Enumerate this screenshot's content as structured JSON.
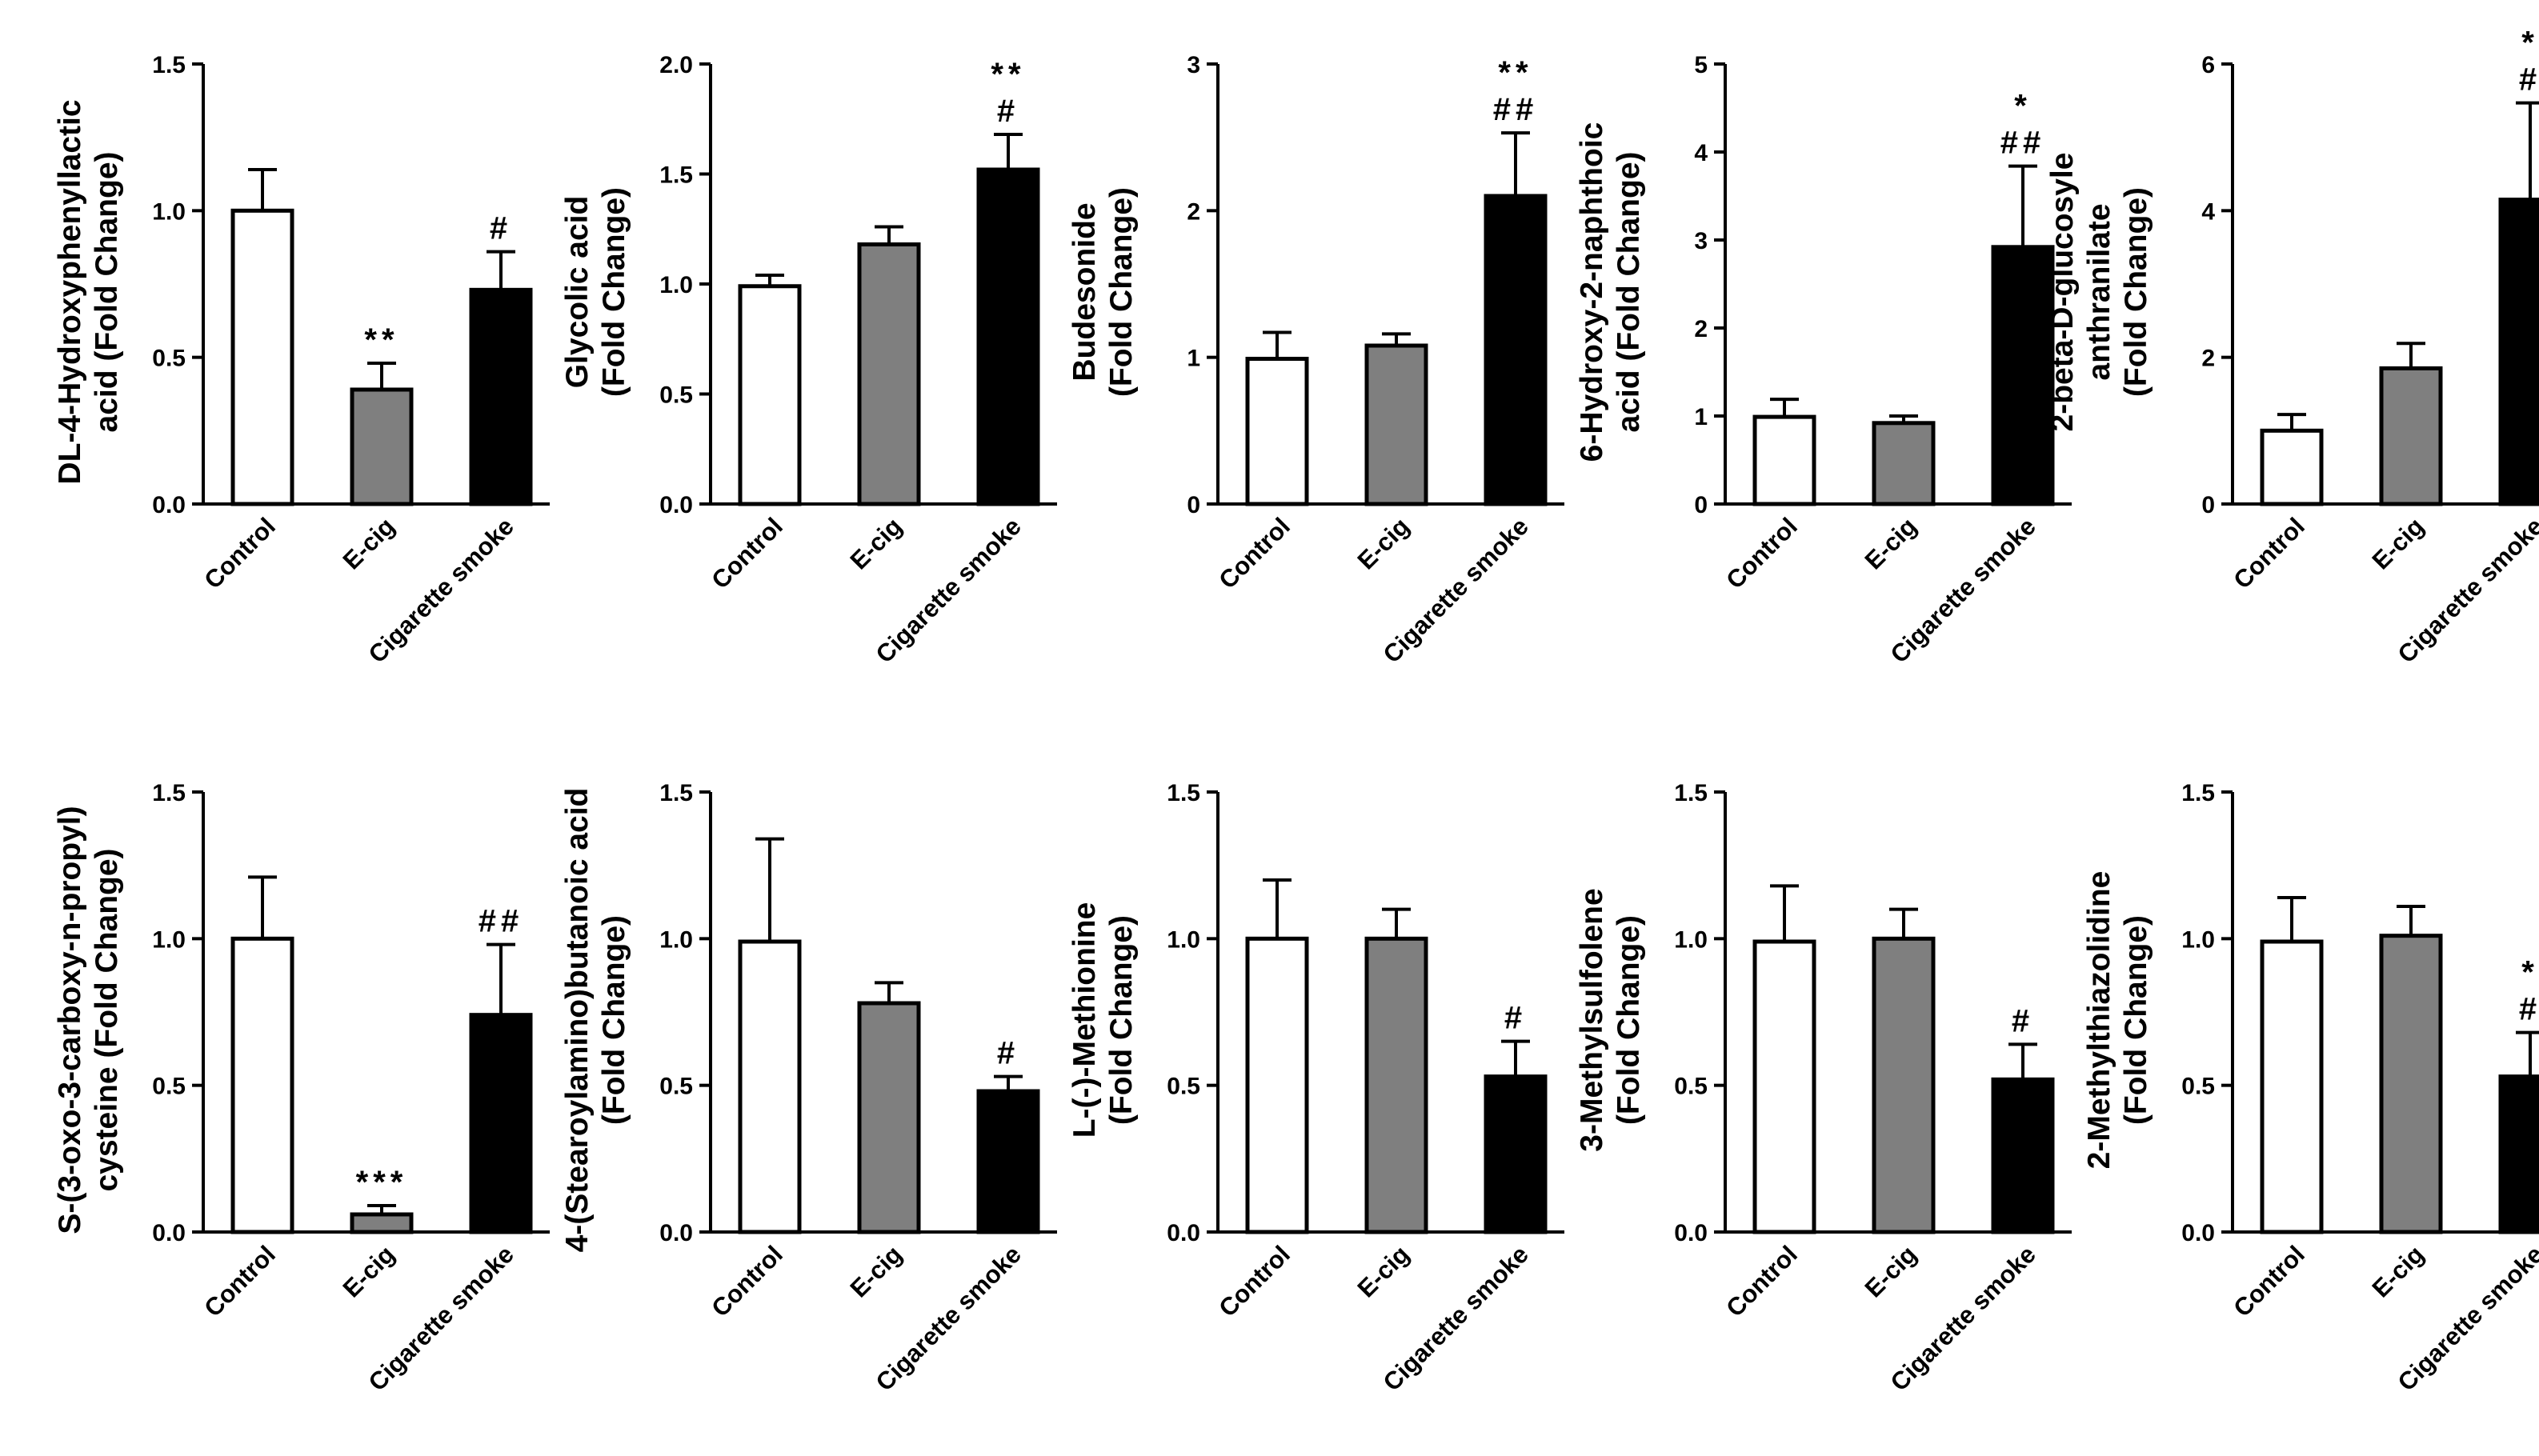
{
  "colors": {
    "control": "#ffffff",
    "ecig": "#7f7f7f",
    "smoke": "#000000",
    "axis": "#000000",
    "error_bar": "#000000"
  },
  "chart_data": [
    {
      "type": "bar",
      "ylabel": [
        "DL-4-Hydroxyphenyllactic",
        "acid (Fold Change)"
      ],
      "ylim": [
        0,
        1.5
      ],
      "yticks": [
        "0.0",
        "0.5",
        "1.0",
        "1.5"
      ],
      "categories": [
        "Control",
        "E-cig",
        "Cigarette smoke"
      ],
      "values": [
        1.0,
        0.39,
        0.73
      ],
      "errors": [
        0.14,
        0.09,
        0.13
      ],
      "significance": [
        [],
        [
          "**"
        ],
        [
          "#"
        ]
      ]
    },
    {
      "type": "bar",
      "ylabel": [
        "Glycolic acid",
        "(Fold Change)"
      ],
      "ylim": [
        0,
        2.0
      ],
      "yticks": [
        "0.0",
        "0.5",
        "1.0",
        "1.5",
        "2.0"
      ],
      "categories": [
        "Control",
        "E-cig",
        "Cigarette smoke"
      ],
      "values": [
        0.99,
        1.18,
        1.52
      ],
      "errors": [
        0.05,
        0.08,
        0.16
      ],
      "significance": [
        [],
        [],
        [
          "**",
          "#"
        ]
      ]
    },
    {
      "type": "bar",
      "ylabel": [
        "Budesonide",
        "(Fold Change)"
      ],
      "ylim": [
        0,
        3
      ],
      "yticks": [
        "0",
        "1",
        "2",
        "3"
      ],
      "categories": [
        "Control",
        "E-cig",
        "Cigarette smoke"
      ],
      "values": [
        0.99,
        1.08,
        2.1
      ],
      "errors": [
        0.18,
        0.08,
        0.43
      ],
      "significance": [
        [],
        [],
        [
          "**",
          "##"
        ]
      ]
    },
    {
      "type": "bar",
      "ylabel": [
        "6-Hydroxy-2-naphthoic",
        "acid (Fold Change)"
      ],
      "ylim": [
        0,
        5
      ],
      "yticks": [
        "0",
        "1",
        "2",
        "3",
        "4",
        "5"
      ],
      "categories": [
        "Control",
        "E-cig",
        "Cigarette smoke"
      ],
      "values": [
        0.99,
        0.92,
        2.92
      ],
      "errors": [
        0.2,
        0.08,
        0.92
      ],
      "significance": [
        [],
        [],
        [
          "*",
          "##"
        ]
      ]
    },
    {
      "type": "bar",
      "ylabel": [
        "2-beta-D-glucosyle",
        "anthranilate",
        "(Fold Change)"
      ],
      "ylim": [
        0,
        6
      ],
      "yticks": [
        "0",
        "2",
        "4",
        "6"
      ],
      "categories": [
        "Control",
        "E-cig",
        "Cigarette smoke"
      ],
      "values": [
        1.0,
        1.85,
        4.15
      ],
      "errors": [
        0.22,
        0.34,
        1.32
      ],
      "significance": [
        [],
        [],
        [
          "*",
          "#"
        ]
      ]
    },
    {
      "type": "bar",
      "ylabel": [
        "S-(3-oxo-3-carboxy-n-propyl)",
        "cysteine (Fold Change)"
      ],
      "ylim": [
        0,
        1.5
      ],
      "yticks": [
        "0.0",
        "0.5",
        "1.0",
        "1.5"
      ],
      "categories": [
        "Control",
        "E-cig",
        "Cigarette smoke"
      ],
      "values": [
        1.0,
        0.06,
        0.74
      ],
      "errors": [
        0.21,
        0.03,
        0.24
      ],
      "significance": [
        [],
        [
          "***"
        ],
        [
          "##"
        ]
      ]
    },
    {
      "type": "bar",
      "ylabel": [
        "4-(Stearoylamino)butanoic acid",
        "(Fold Change)"
      ],
      "ylim": [
        0,
        1.5
      ],
      "yticks": [
        "0.0",
        "0.5",
        "1.0",
        "1.5"
      ],
      "categories": [
        "Control",
        "E-cig",
        "Cigarette smoke"
      ],
      "values": [
        0.99,
        0.78,
        0.48
      ],
      "errors": [
        0.35,
        0.07,
        0.05
      ],
      "significance": [
        [],
        [],
        [
          "#"
        ]
      ]
    },
    {
      "type": "bar",
      "ylabel": [
        "L-(-)-Methionine",
        "(Fold Change)"
      ],
      "ylim": [
        0,
        1.5
      ],
      "yticks": [
        "0.0",
        "0.5",
        "1.0",
        "1.5"
      ],
      "categories": [
        "Control",
        "E-cig",
        "Cigarette smoke"
      ],
      "values": [
        1.0,
        1.0,
        0.53
      ],
      "errors": [
        0.2,
        0.1,
        0.12
      ],
      "significance": [
        [],
        [],
        [
          "#"
        ]
      ]
    },
    {
      "type": "bar",
      "ylabel": [
        "3-Methylsulfolene",
        "(Fold Change)"
      ],
      "ylim": [
        0,
        1.5
      ],
      "yticks": [
        "0.0",
        "0.5",
        "1.0",
        "1.5"
      ],
      "categories": [
        "Control",
        "E-cig",
        "Cigarette smoke"
      ],
      "values": [
        0.99,
        1.0,
        0.52
      ],
      "errors": [
        0.19,
        0.1,
        0.12
      ],
      "significance": [
        [],
        [],
        [
          "#"
        ]
      ]
    },
    {
      "type": "bar",
      "ylabel": [
        "2-Methylthiazolidine",
        "(Fold Change)"
      ],
      "ylim": [
        0,
        1.5
      ],
      "yticks": [
        "0.0",
        "0.5",
        "1.0",
        "1.5"
      ],
      "categories": [
        "Control",
        "E-cig",
        "Cigarette smoke"
      ],
      "values": [
        0.99,
        1.01,
        0.53
      ],
      "errors": [
        0.15,
        0.1,
        0.15
      ],
      "significance": [
        [],
        [],
        [
          "*",
          "#"
        ]
      ]
    }
  ]
}
